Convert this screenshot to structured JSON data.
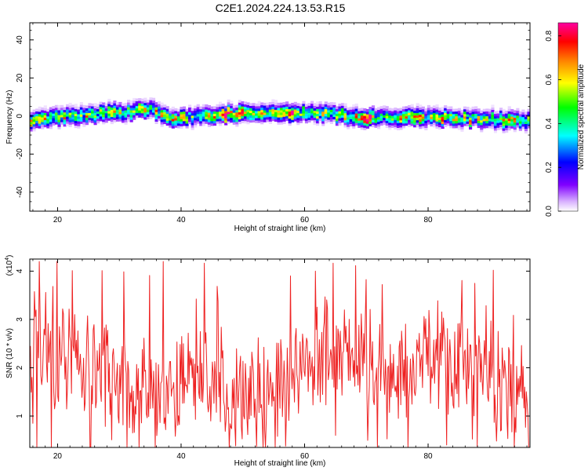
{
  "title": "C2E1.2024.224.13.53.R15",
  "chart_data": [
    {
      "type": "heatmap",
      "xlabel": "Height of straight line (km)",
      "ylabel": "Frequency (Hz)",
      "xlim": [
        15.5,
        96.5
      ],
      "ylim": [
        -50,
        49
      ],
      "xticks": [
        20,
        40,
        60,
        80
      ],
      "yticks": [
        -40,
        -20,
        0,
        20,
        40
      ],
      "colorbar": {
        "label": "Normalized spectral amplitude",
        "range": [
          0,
          0.86
        ],
        "ticks": [
          "0.0",
          "0.2",
          "0.4",
          "0.6",
          "0.8"
        ],
        "colormap": [
          "#ffffff",
          "#d9b3ff",
          "#8000ff",
          "#0000ff",
          "#00ffff",
          "#00ff00",
          "#ffff00",
          "#ff8000",
          "#ff0000",
          "#ff00a0"
        ]
      },
      "center_frequency": [
        {
          "x": 16,
          "y": -2
        },
        {
          "x": 25,
          "y": 0
        },
        {
          "x": 35,
          "y": 3
        },
        {
          "x": 38,
          "y": -2
        },
        {
          "x": 45,
          "y": 0
        },
        {
          "x": 55,
          "y": 1.5
        },
        {
          "x": 62,
          "y": 1
        },
        {
          "x": 70,
          "y": -1.5
        },
        {
          "x": 78,
          "y": -1
        },
        {
          "x": 88,
          "y": -2
        },
        {
          "x": 96,
          "y": -3
        }
      ],
      "peak_amplitude_x": [
        47,
        49,
        58,
        70,
        78
      ]
    },
    {
      "type": "line",
      "xlabel": "Height of straight line (km)",
      "ylabel": "SNR (10 * v/v)",
      "multiplier": "(x10",
      "multiplier_exp": "4",
      "multiplier_close": ")",
      "xlim": [
        15.5,
        96.5
      ],
      "ylim": [
        0.35,
        4.25
      ],
      "xticks": [
        20,
        40,
        60,
        80
      ],
      "yticks": [
        1,
        2,
        3,
        4
      ],
      "series": [
        {
          "color": "#ee2222",
          "x_start": 15.6,
          "x_end": 96.3,
          "points": 620
        }
      ],
      "notable_points": [
        {
          "x": 25.3,
          "y": 0.35
        },
        {
          "x": 37.1,
          "y": 4.2
        },
        {
          "x": 90.6,
          "y": 4.02
        },
        {
          "x": 83.0,
          "y": 0.4
        },
        {
          "x": 65.0,
          "y": 0.6
        },
        {
          "x": 32.2,
          "y": 0.65
        }
      ],
      "mean_level": 2.0
    }
  ]
}
